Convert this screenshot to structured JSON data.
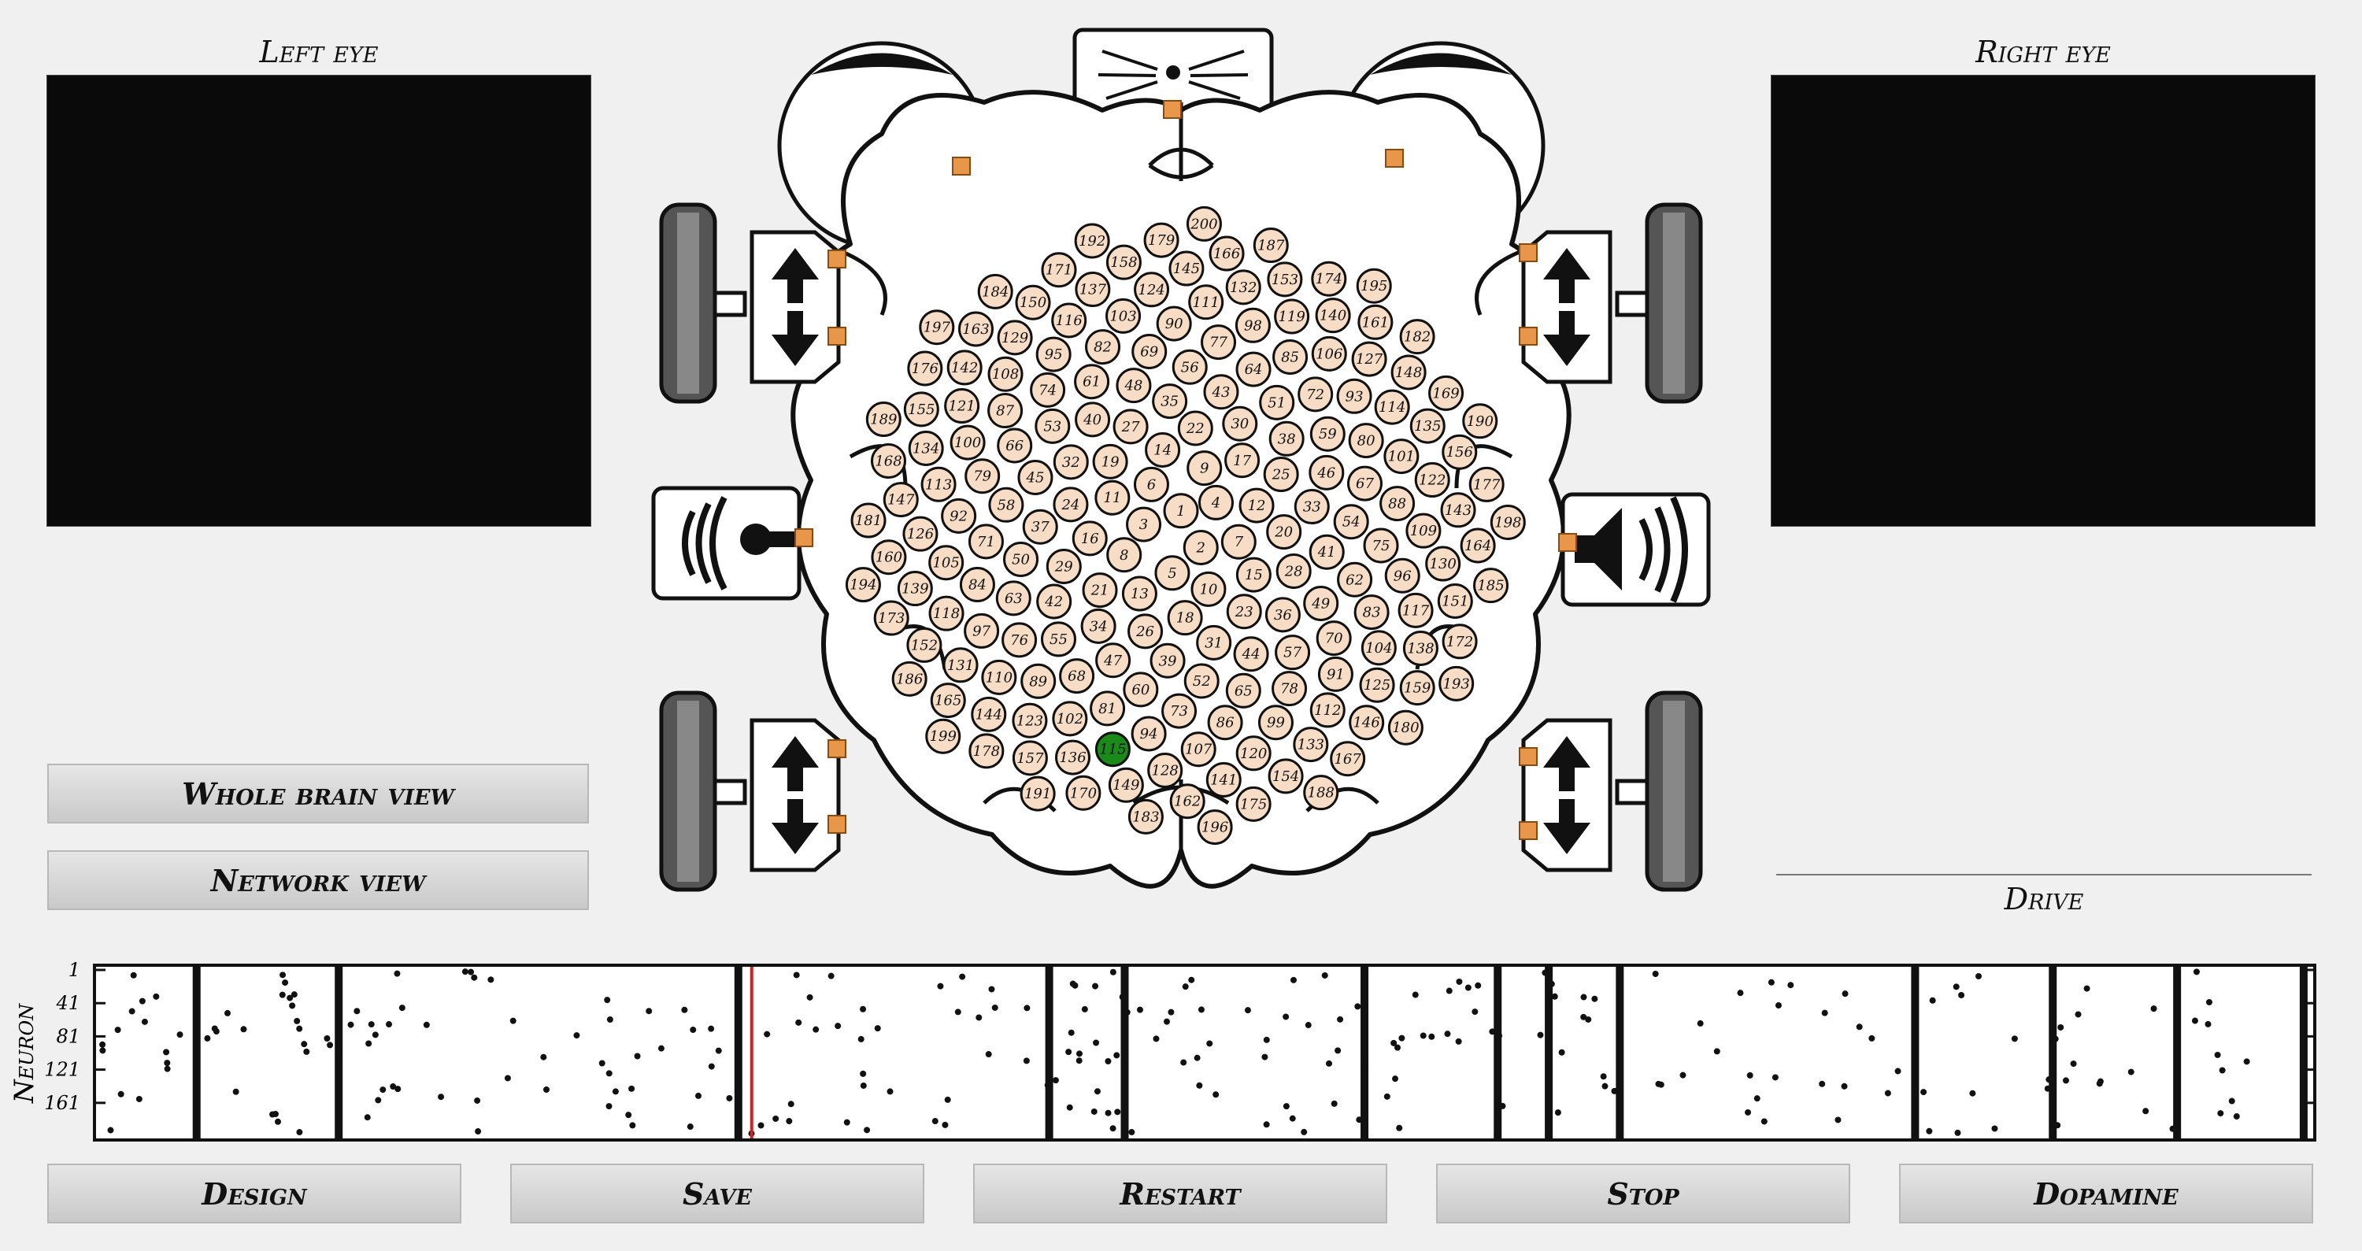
{
  "labels": {
    "left_eye": "Left eye",
    "right_eye": "Right eye",
    "drive": "Drive",
    "neuron_axis": "Neuron"
  },
  "views": {
    "whole_brain": "Whole brain view",
    "network": "Network view"
  },
  "buttons": {
    "design": "Design",
    "save": "Save",
    "restart": "Restart",
    "stop": "Stop",
    "dopamine": "Dopamine"
  },
  "raster": {
    "y_ticks": [
      "1",
      "41",
      "81",
      "121",
      "161"
    ],
    "neuron_count": 200,
    "cursor_fraction": 0.296
  },
  "network": {
    "active_neuron": "115",
    "neurons": [
      "1",
      "2",
      "3",
      "4",
      "5",
      "6",
      "7",
      "8",
      "9",
      "10",
      "11",
      "12",
      "13",
      "14",
      "15",
      "16",
      "17",
      "18",
      "19",
      "20",
      "21",
      "22",
      "23",
      "24",
      "25",
      "26",
      "27",
      "28",
      "29",
      "30",
      "31",
      "32",
      "33",
      "34",
      "35",
      "36",
      "37",
      "38",
      "39",
      "40",
      "41",
      "42",
      "43",
      "44",
      "45",
      "46",
      "47",
      "48",
      "49",
      "50",
      "51",
      "52",
      "53",
      "54",
      "55",
      "56",
      "57",
      "58",
      "59",
      "60",
      "61",
      "62",
      "63",
      "64",
      "65",
      "66",
      "67",
      "68",
      "69",
      "70",
      "71",
      "72",
      "73",
      "74",
      "75",
      "76",
      "77",
      "78",
      "79",
      "80",
      "81",
      "82",
      "83",
      "84",
      "85",
      "86",
      "87",
      "88",
      "89",
      "90",
      "91",
      "92",
      "93",
      "94",
      "95",
      "96",
      "97",
      "98",
      "99",
      "100",
      "101",
      "102",
      "103",
      "104",
      "105",
      "106",
      "107",
      "108",
      "109",
      "110",
      "111",
      "112",
      "113",
      "114",
      "115",
      "116",
      "117",
      "118",
      "119",
      "120",
      "121",
      "122",
      "123",
      "124",
      "125",
      "126",
      "127",
      "128",
      "129",
      "130",
      "131",
      "132",
      "133",
      "134",
      "135",
      "136",
      "137",
      "138",
      "139",
      "140",
      "141",
      "142",
      "143",
      "144",
      "145",
      "146",
      "147",
      "148",
      "149",
      "150",
      "151",
      "152",
      "153",
      "154",
      "155",
      "156",
      "157",
      "158",
      "159",
      "160",
      "161",
      "162",
      "163",
      "164",
      "165",
      "166",
      "167",
      "168",
      "169",
      "170",
      "171",
      "172",
      "173",
      "174",
      "175",
      "176",
      "177",
      "178",
      "179",
      "180",
      "181",
      "182",
      "183",
      "184",
      "185",
      "186",
      "187",
      "188",
      "189",
      "190",
      "191",
      "192",
      "193",
      "194",
      "195",
      "196",
      "197",
      "198",
      "199",
      "200"
    ]
  },
  "colors": {
    "neuron_fill": "#f7dcc6",
    "neuron_active": "#1a8a1a",
    "sensor": "#e8974a",
    "cursor": "#d62020",
    "eye_view": "#0a0a0a"
  },
  "icons": [
    "camera-icon",
    "microphone-icon",
    "speaker-icon",
    "motor-forward-icon",
    "motor-backward-icon",
    "wheel-icon",
    "eye-icon"
  ]
}
